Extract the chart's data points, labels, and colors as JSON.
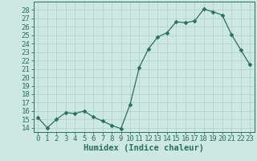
{
  "x": [
    0,
    1,
    2,
    3,
    4,
    5,
    6,
    7,
    8,
    9,
    10,
    11,
    12,
    13,
    14,
    15,
    16,
    17,
    18,
    19,
    20,
    21,
    22,
    23
  ],
  "y": [
    15.2,
    14.0,
    15.0,
    15.8,
    15.7,
    16.0,
    15.3,
    14.8,
    14.3,
    13.9,
    16.8,
    21.2,
    23.4,
    24.8,
    25.3,
    26.6,
    26.5,
    26.7,
    28.1,
    27.8,
    27.4,
    25.1,
    23.3,
    21.5
  ],
  "line_color": "#2a6e62",
  "marker": "D",
  "marker_size": 2.5,
  "bg_color": "#cde8e0",
  "grid_color": "#b0d5cc",
  "title": "",
  "xlabel": "Humidex (Indice chaleur)",
  "ylabel": "",
  "xlim": [
    -0.5,
    23.5
  ],
  "ylim": [
    13.5,
    29.0
  ],
  "ytick_labels": [
    "14",
    "15",
    "16",
    "17",
    "18",
    "19",
    "20",
    "21",
    "22",
    "23",
    "24",
    "25",
    "26",
    "27",
    "28"
  ],
  "yticks": [
    14,
    15,
    16,
    17,
    18,
    19,
    20,
    21,
    22,
    23,
    24,
    25,
    26,
    27,
    28
  ],
  "xticks": [
    0,
    1,
    2,
    3,
    4,
    5,
    6,
    7,
    8,
    9,
    10,
    11,
    12,
    13,
    14,
    15,
    16,
    17,
    18,
    19,
    20,
    21,
    22,
    23
  ],
  "tick_color": "#2a6e62",
  "axis_color": "#2a6e62",
  "label_fontsize": 6.5,
  "xlabel_fontsize": 7.5
}
